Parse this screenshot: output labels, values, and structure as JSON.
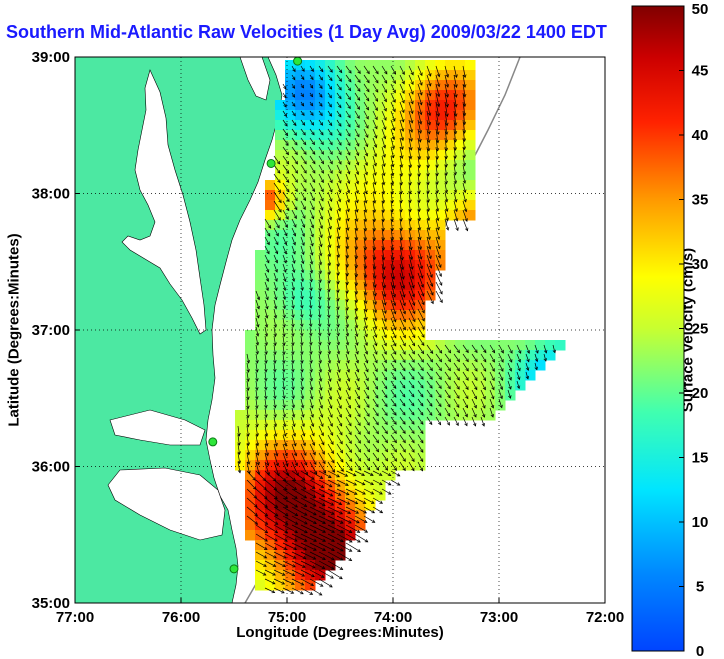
{
  "chart_data": {
    "type": "heatmap",
    "title": "Southern Mid-Atlantic Raw Velocities (1 Day Avg) 2009/03/22 1400 EDT",
    "xlabel": "Longitude (Degrees:Minutes)",
    "ylabel": "Latitude (Degrees:Minutes)",
    "colorbar_label": "Surface Velocity (cm/s)",
    "x_ticks": [
      "77:00",
      "76:00",
      "75:00",
      "74:00",
      "73:00",
      "72:00"
    ],
    "y_ticks": [
      "39:00",
      "38:00",
      "37:00",
      "36:00",
      "35:00"
    ],
    "colorbar_ticks": [
      "0",
      "5",
      "10",
      "15",
      "20",
      "25",
      "30",
      "35",
      "40",
      "45",
      "50"
    ],
    "xlim": [
      -77,
      -72
    ],
    "ylim": [
      35,
      39
    ],
    "clim": [
      0,
      50
    ],
    "grid": true,
    "colormap": "jet",
    "vector_field": "surface current arrows over velocity-magnitude grid",
    "stations": [
      {
        "lon": -74.9,
        "lat": 38.97
      },
      {
        "lon": -75.15,
        "lat": 38.22
      },
      {
        "lon": -75.7,
        "lat": 36.18
      },
      {
        "lon": -75.5,
        "lat": 35.25
      }
    ],
    "colors": {
      "land": "#4ce8a2",
      "water_shadow": "#ffffff",
      "title": "#1a1aff"
    }
  }
}
